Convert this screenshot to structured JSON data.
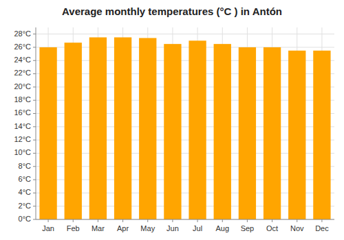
{
  "chart_data": {
    "type": "bar",
    "title": "Average monthly temperatures (°C ) in Antón",
    "categories": [
      "Jan",
      "Feb",
      "Mar",
      "Apr",
      "May",
      "Jun",
      "Jul",
      "Aug",
      "Sep",
      "Oct",
      "Nov",
      "Dec"
    ],
    "values": [
      26.0,
      26.7,
      27.5,
      27.5,
      27.4,
      26.5,
      27.0,
      26.5,
      26.0,
      26.0,
      25.5,
      25.5
    ],
    "color": "#FFA500",
    "ylim": [
      0,
      29
    ],
    "yticks": [
      {
        "value": 0,
        "label": "0°C"
      },
      {
        "value": 2,
        "label": "2°C"
      },
      {
        "value": 4,
        "label": "4°C"
      },
      {
        "value": 6,
        "label": "6°C"
      },
      {
        "value": 8,
        "label": "8°C"
      },
      {
        "value": 10,
        "label": "10°C"
      },
      {
        "value": 12,
        "label": "12°C"
      },
      {
        "value": 14,
        "label": "14°C"
      },
      {
        "value": 16,
        "label": "16°C"
      },
      {
        "value": 18,
        "label": "18°C"
      },
      {
        "value": 20,
        "label": "20°C"
      },
      {
        "value": 22,
        "label": "22°C"
      },
      {
        "value": 24,
        "label": "24°C"
      },
      {
        "value": 26,
        "label": "26°C"
      },
      {
        "value": 28,
        "label": "28°C"
      }
    ],
    "grid": true
  }
}
